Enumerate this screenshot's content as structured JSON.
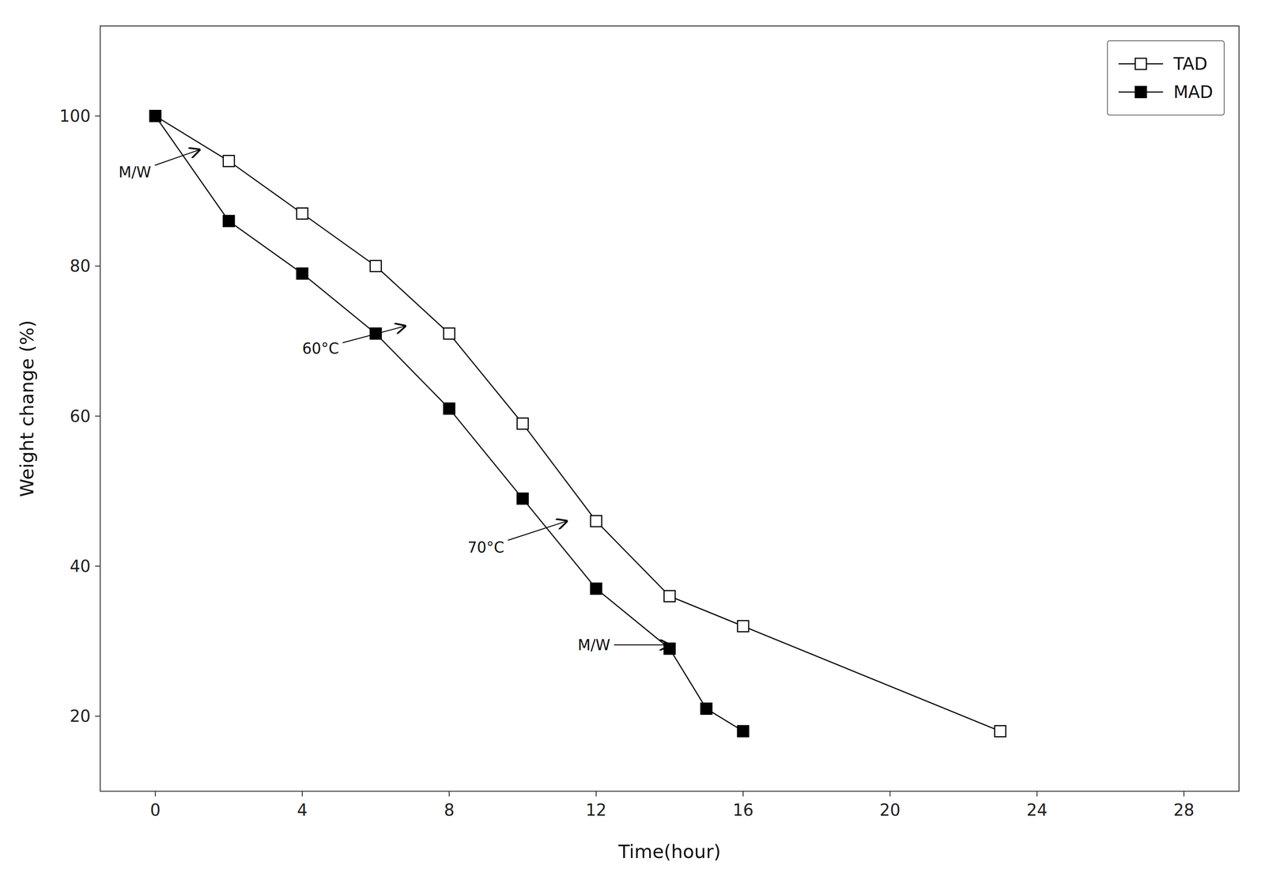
{
  "chart_data": {
    "type": "line",
    "xlabel": "Time(hour)",
    "ylabel": "Weight change (%)",
    "series": [
      {
        "name": "TAD",
        "color": "#000000",
        "marker": "square-open",
        "line_style": "solid",
        "x": [
          0,
          2,
          4,
          6,
          8,
          10,
          12,
          14,
          16,
          23
        ],
        "values": [
          100,
          94,
          87,
          80,
          71,
          59,
          46,
          36,
          32,
          18
        ]
      },
      {
        "name": "MAD",
        "color": "#000000",
        "marker": "square",
        "line_style": "solid",
        "x": [
          0,
          2,
          4,
          6,
          8,
          10,
          12,
          14,
          15,
          16
        ],
        "values": [
          100,
          86,
          79,
          71,
          61,
          49,
          37,
          29,
          21,
          18
        ]
      }
    ],
    "xlim": [
      -1.5,
      29.5
    ],
    "ylim": [
      10,
      112
    ],
    "xticks": [
      0,
      4,
      8,
      12,
      16,
      20,
      24,
      28
    ],
    "yticks": [
      20,
      40,
      60,
      80,
      100
    ],
    "grid": false,
    "legend": "upper right",
    "annotations": [
      {
        "text": "M/W",
        "x": -1.0,
        "y": 92.5,
        "arrow_x": 1.2,
        "arrow_y": 95.5
      },
      {
        "text": "60°C",
        "x": 4.0,
        "y": 69.0,
        "arrow_x": 6.8,
        "arrow_y": 72.0
      },
      {
        "text": "70°C",
        "x": 8.5,
        "y": 42.5,
        "arrow_x": 11.2,
        "arrow_y": 46.0
      },
      {
        "text": "M/W",
        "x": 11.5,
        "y": 29.5,
        "arrow_x": 14.0,
        "arrow_y": 29.5
      }
    ]
  }
}
